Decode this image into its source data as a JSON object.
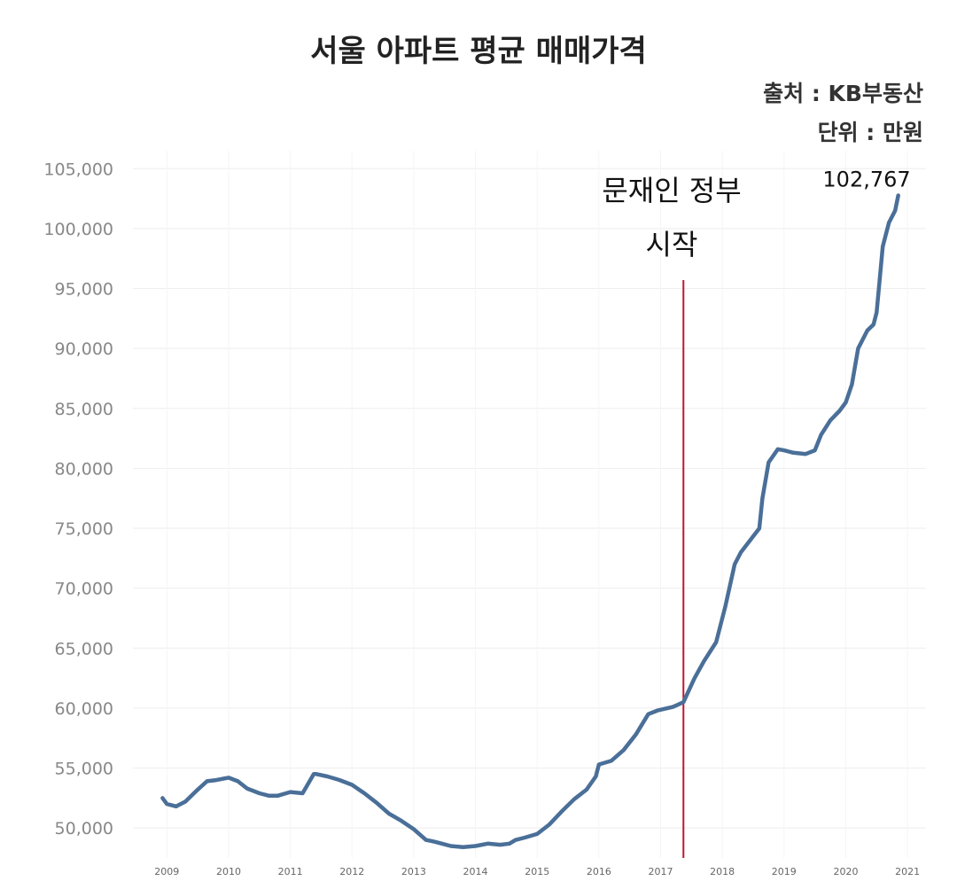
{
  "header": {
    "title": "서울 아파트 평균 매매가격",
    "source": "출처 : KB부동산",
    "unit": "단위 : 만원"
  },
  "annotation": {
    "line1": "문재인 정부",
    "line2": "시작",
    "x": 2017.37,
    "color": "#c0152f"
  },
  "end_label": {
    "text": "102,767",
    "x": 2020.85,
    "y": 102767
  },
  "chart_data": {
    "type": "line",
    "title": "서울 아파트 평균 매매가격",
    "xlabel": "",
    "ylabel": "",
    "xlim": [
      2008.45,
      2021.3
    ],
    "ylim": [
      47500,
      106500
    ],
    "yticks": [
      50000,
      55000,
      60000,
      65000,
      70000,
      75000,
      80000,
      85000,
      90000,
      95000,
      100000,
      105000
    ],
    "ytick_labels": [
      "50,000",
      "55,000",
      "60,000",
      "65,000",
      "70,000",
      "75,000",
      "80,000",
      "85,000",
      "90,000",
      "95,000",
      "100,000",
      "105,000"
    ],
    "xticks": [
      2009,
      2010,
      2011,
      2012,
      2013,
      2014,
      2015,
      2016,
      2017,
      2018,
      2019,
      2020,
      2021
    ],
    "xtick_labels": [
      "2009",
      "2010",
      "2011",
      "2012",
      "2013",
      "2014",
      "2015",
      "2016",
      "2017",
      "2018",
      "2019",
      "2020",
      "2021"
    ],
    "grid": true,
    "line_color": "#4a6f98",
    "series": [
      {
        "x": [
          2008.93,
          2009.0,
          2009.15,
          2009.3,
          2009.5,
          2009.65,
          2009.8,
          2010.0,
          2010.15,
          2010.3,
          2010.5,
          2010.65,
          2010.8,
          2011.0,
          2011.2,
          2011.38,
          2011.42,
          2011.6,
          2011.8,
          2012.0,
          2012.2,
          2012.4,
          2012.6,
          2012.8,
          2013.0,
          2013.2,
          2013.3,
          2013.38,
          2013.6,
          2013.8,
          2014.0,
          2014.2,
          2014.4,
          2014.55,
          2014.65,
          2014.8,
          2015.0,
          2015.2,
          2015.4,
          2015.6,
          2015.8,
          2015.95,
          2016.0,
          2016.2,
          2016.4,
          2016.6,
          2016.8,
          2016.95,
          2017.2,
          2017.37,
          2017.55,
          2017.7,
          2017.9,
          2018.05,
          2018.2,
          2018.3,
          2018.45,
          2018.6,
          2018.65,
          2018.75,
          2018.9,
          2019.0,
          2019.15,
          2019.35,
          2019.5,
          2019.6,
          2019.75,
          2019.9,
          2020.0,
          2020.1,
          2020.2,
          2020.35,
          2020.45,
          2020.5,
          2020.6,
          2020.7,
          2020.8,
          2020.85
        ],
        "y": [
          52500,
          52000,
          51800,
          52200,
          53200,
          53900,
          54000,
          54200,
          53900,
          53300,
          52900,
          52700,
          52700,
          53000,
          52900,
          54500,
          54500,
          54300,
          54000,
          53600,
          52900,
          52100,
          51200,
          50600,
          49900,
          49000,
          48900,
          48800,
          48500,
          48400,
          48500,
          48700,
          48600,
          48700,
          49000,
          49200,
          49500,
          50300,
          51400,
          52400,
          53200,
          54300,
          55300,
          55600,
          56500,
          57800,
          59500,
          59800,
          60100,
          60500,
          62500,
          63900,
          65500,
          68500,
          72000,
          73000,
          74000,
          75000,
          77500,
          80500,
          81600,
          81500,
          81300,
          81200,
          81500,
          82800,
          84000,
          84800,
          85500,
          87000,
          90000,
          91500,
          92000,
          93000,
          98500,
          100500,
          101500,
          102767
        ]
      }
    ]
  }
}
